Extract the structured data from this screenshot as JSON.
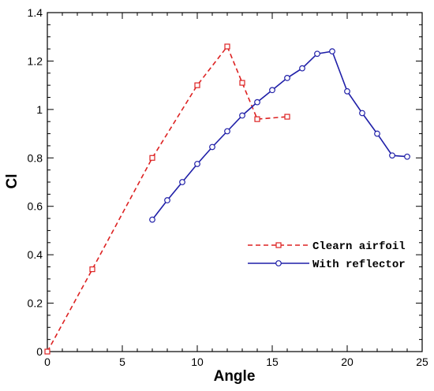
{
  "chart_data": {
    "type": "line",
    "xlabel": "Angle",
    "ylabel": "Cl",
    "xlim": [
      0,
      25
    ],
    "ylim": [
      0,
      1.4
    ],
    "xticks": [
      0,
      5,
      10,
      15,
      20,
      25
    ],
    "xtick_labels": [
      "0",
      "5",
      "10",
      "15",
      "20",
      "25"
    ],
    "yticks": [
      0,
      0.2,
      0.4,
      0.6,
      0.8,
      1.0,
      1.2,
      1.4
    ],
    "ytick_labels": [
      "0",
      "0.2",
      "0.4",
      "0.6",
      "0.8",
      "1",
      "1.2",
      "1.4"
    ],
    "grid": false,
    "legend_position": "center-right",
    "series": [
      {
        "name": "Clearn airfoil",
        "color": "#dd2222",
        "line_style": "dashed",
        "marker": "square",
        "x": [
          0,
          3,
          7,
          10,
          12,
          13,
          14,
          16
        ],
        "y": [
          0.0,
          0.34,
          0.8,
          1.1,
          1.26,
          1.11,
          0.96,
          0.97
        ]
      },
      {
        "name": "With reflector",
        "color": "#1f1fa8",
        "line_style": "solid",
        "marker": "circle",
        "x": [
          7,
          8,
          9,
          10,
          11,
          12,
          13,
          14,
          15,
          16,
          17,
          18,
          19,
          20,
          21,
          22,
          23,
          24
        ],
        "y": [
          0.545,
          0.625,
          0.7,
          0.775,
          0.845,
          0.91,
          0.975,
          1.03,
          1.08,
          1.13,
          1.17,
          1.23,
          1.24,
          1.075,
          0.985,
          0.9,
          0.81,
          0.805
        ]
      }
    ]
  }
}
